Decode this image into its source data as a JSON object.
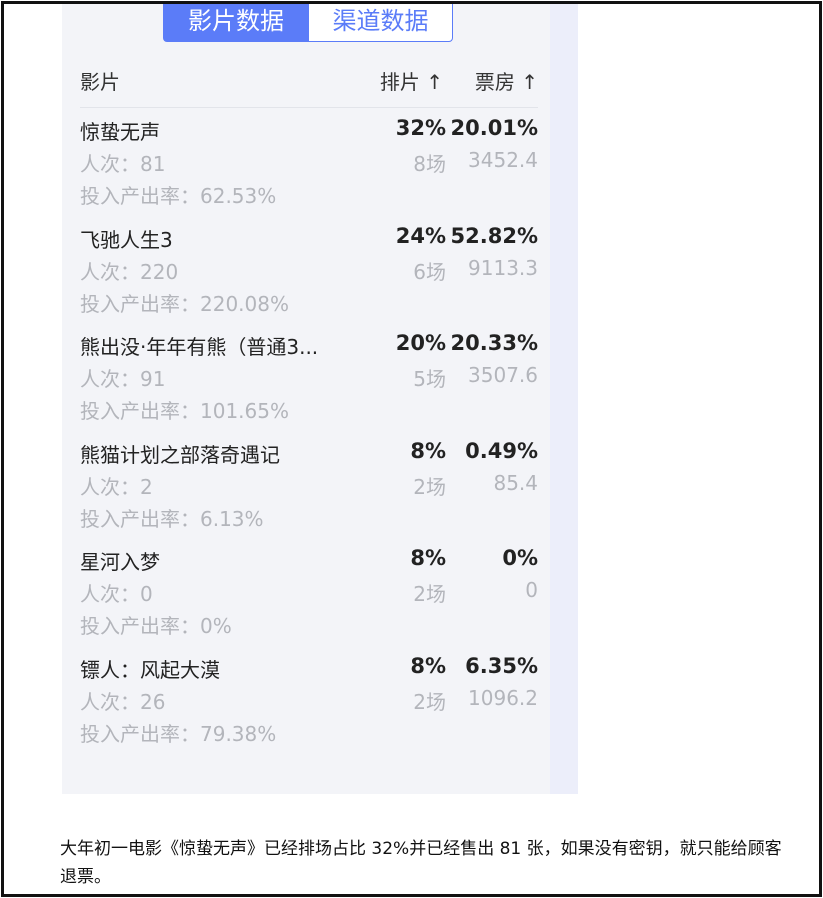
{
  "tabs": [
    "影片数据",
    "渠道数据"
  ],
  "header": {
    "film": "影片",
    "share": "排片 ↑",
    "box_office": "票房 ↑"
  },
  "films": [
    {
      "name": "惊蛰无声",
      "share": "32%",
      "box_office": "20.01%",
      "viewers": "人次：81",
      "shows": "8场",
      "gross": "3452.4",
      "roi": "投入产出率：62.53%"
    },
    {
      "name": "飞驰人生3",
      "share": "24%",
      "box_office": "52.82%",
      "viewers": "人次：220",
      "shows": "6场",
      "gross": "9113.3",
      "roi": "投入产出率：220.08%"
    },
    {
      "name": "熊出没·年年有熊（普通3...",
      "share": "20%",
      "box_office": "20.33%",
      "viewers": "人次：91",
      "shows": "5场",
      "gross": "3507.6",
      "roi": "投入产出率：101.65%"
    },
    {
      "name": "熊猫计划之部落奇遇记",
      "share": "8%",
      "box_office": "0.49%",
      "viewers": "人次：2",
      "shows": "2场",
      "gross": "85.4",
      "roi": "投入产出率：6.13%"
    },
    {
      "name": "星河入梦",
      "share": "8%",
      "box_office": "0%",
      "viewers": "人次：0",
      "shows": "2场",
      "gross": "0",
      "roi": "投入产出率：0%"
    },
    {
      "name": "镖人：风起大漠",
      "share": "8%",
      "box_office": "6.35%",
      "viewers": "人次：26",
      "shows": "2场",
      "gross": "1096.2",
      "roi": "投入产出率：79.38%"
    }
  ],
  "caption": "大年初一电影《惊蛰无声》已经排场占比 32%并已经售出 81 张，如果没有密钥，就只能给顾客退票。"
}
